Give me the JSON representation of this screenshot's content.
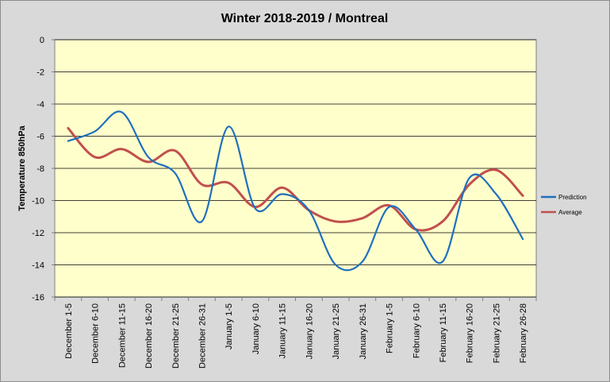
{
  "chart_data": {
    "type": "line",
    "title": "Winter 2018-2019 / Montreal",
    "xlabel": "",
    "ylabel": "Temperature 850hPa",
    "ylim": [
      -16,
      0
    ],
    "yticks": [
      0,
      -2,
      -4,
      -6,
      -8,
      -10,
      -12,
      -14,
      -16
    ],
    "ytick_labels": [
      "0",
      "-2",
      "-4",
      "-6",
      "-8",
      "-10",
      "-12",
      "-14",
      "-16"
    ],
    "grid": "horizontal",
    "legend_position": "right",
    "categories": [
      "December 1-5",
      "December 6-10",
      "December 11-15",
      "December 16-20",
      "December 21-25",
      "December 26-31",
      "January 1-5",
      "January 6-10",
      "January 11-15",
      "January 16-20",
      "January 21-25",
      "January 26-31",
      "February 1-5",
      "February 6-10",
      "February 11-15",
      "February 16-20",
      "February 21-25",
      "February 26-28"
    ],
    "series": [
      {
        "name": "Prediction",
        "color": "#1f6fbf",
        "values": [
          -6.3,
          -5.7,
          -4.5,
          -7.3,
          -8.3,
          -11.3,
          -5.4,
          -10.5,
          -9.6,
          -10.6,
          -14.0,
          -13.8,
          -10.4,
          -11.8,
          -13.8,
          -8.6,
          -9.6,
          -12.4
        ]
      },
      {
        "name": "Average",
        "color": "#c0504d",
        "values": [
          -5.5,
          -7.3,
          -6.8,
          -7.6,
          -6.9,
          -9.0,
          -8.9,
          -10.4,
          -9.2,
          -10.6,
          -11.3,
          -11.1,
          -10.3,
          -11.8,
          -11.3,
          -9.0,
          -8.1,
          -9.7
        ]
      }
    ],
    "colors": {
      "plot_bg": "#ffffcc",
      "outer_bg": "#d9d9d9",
      "grid": "#000000"
    }
  }
}
